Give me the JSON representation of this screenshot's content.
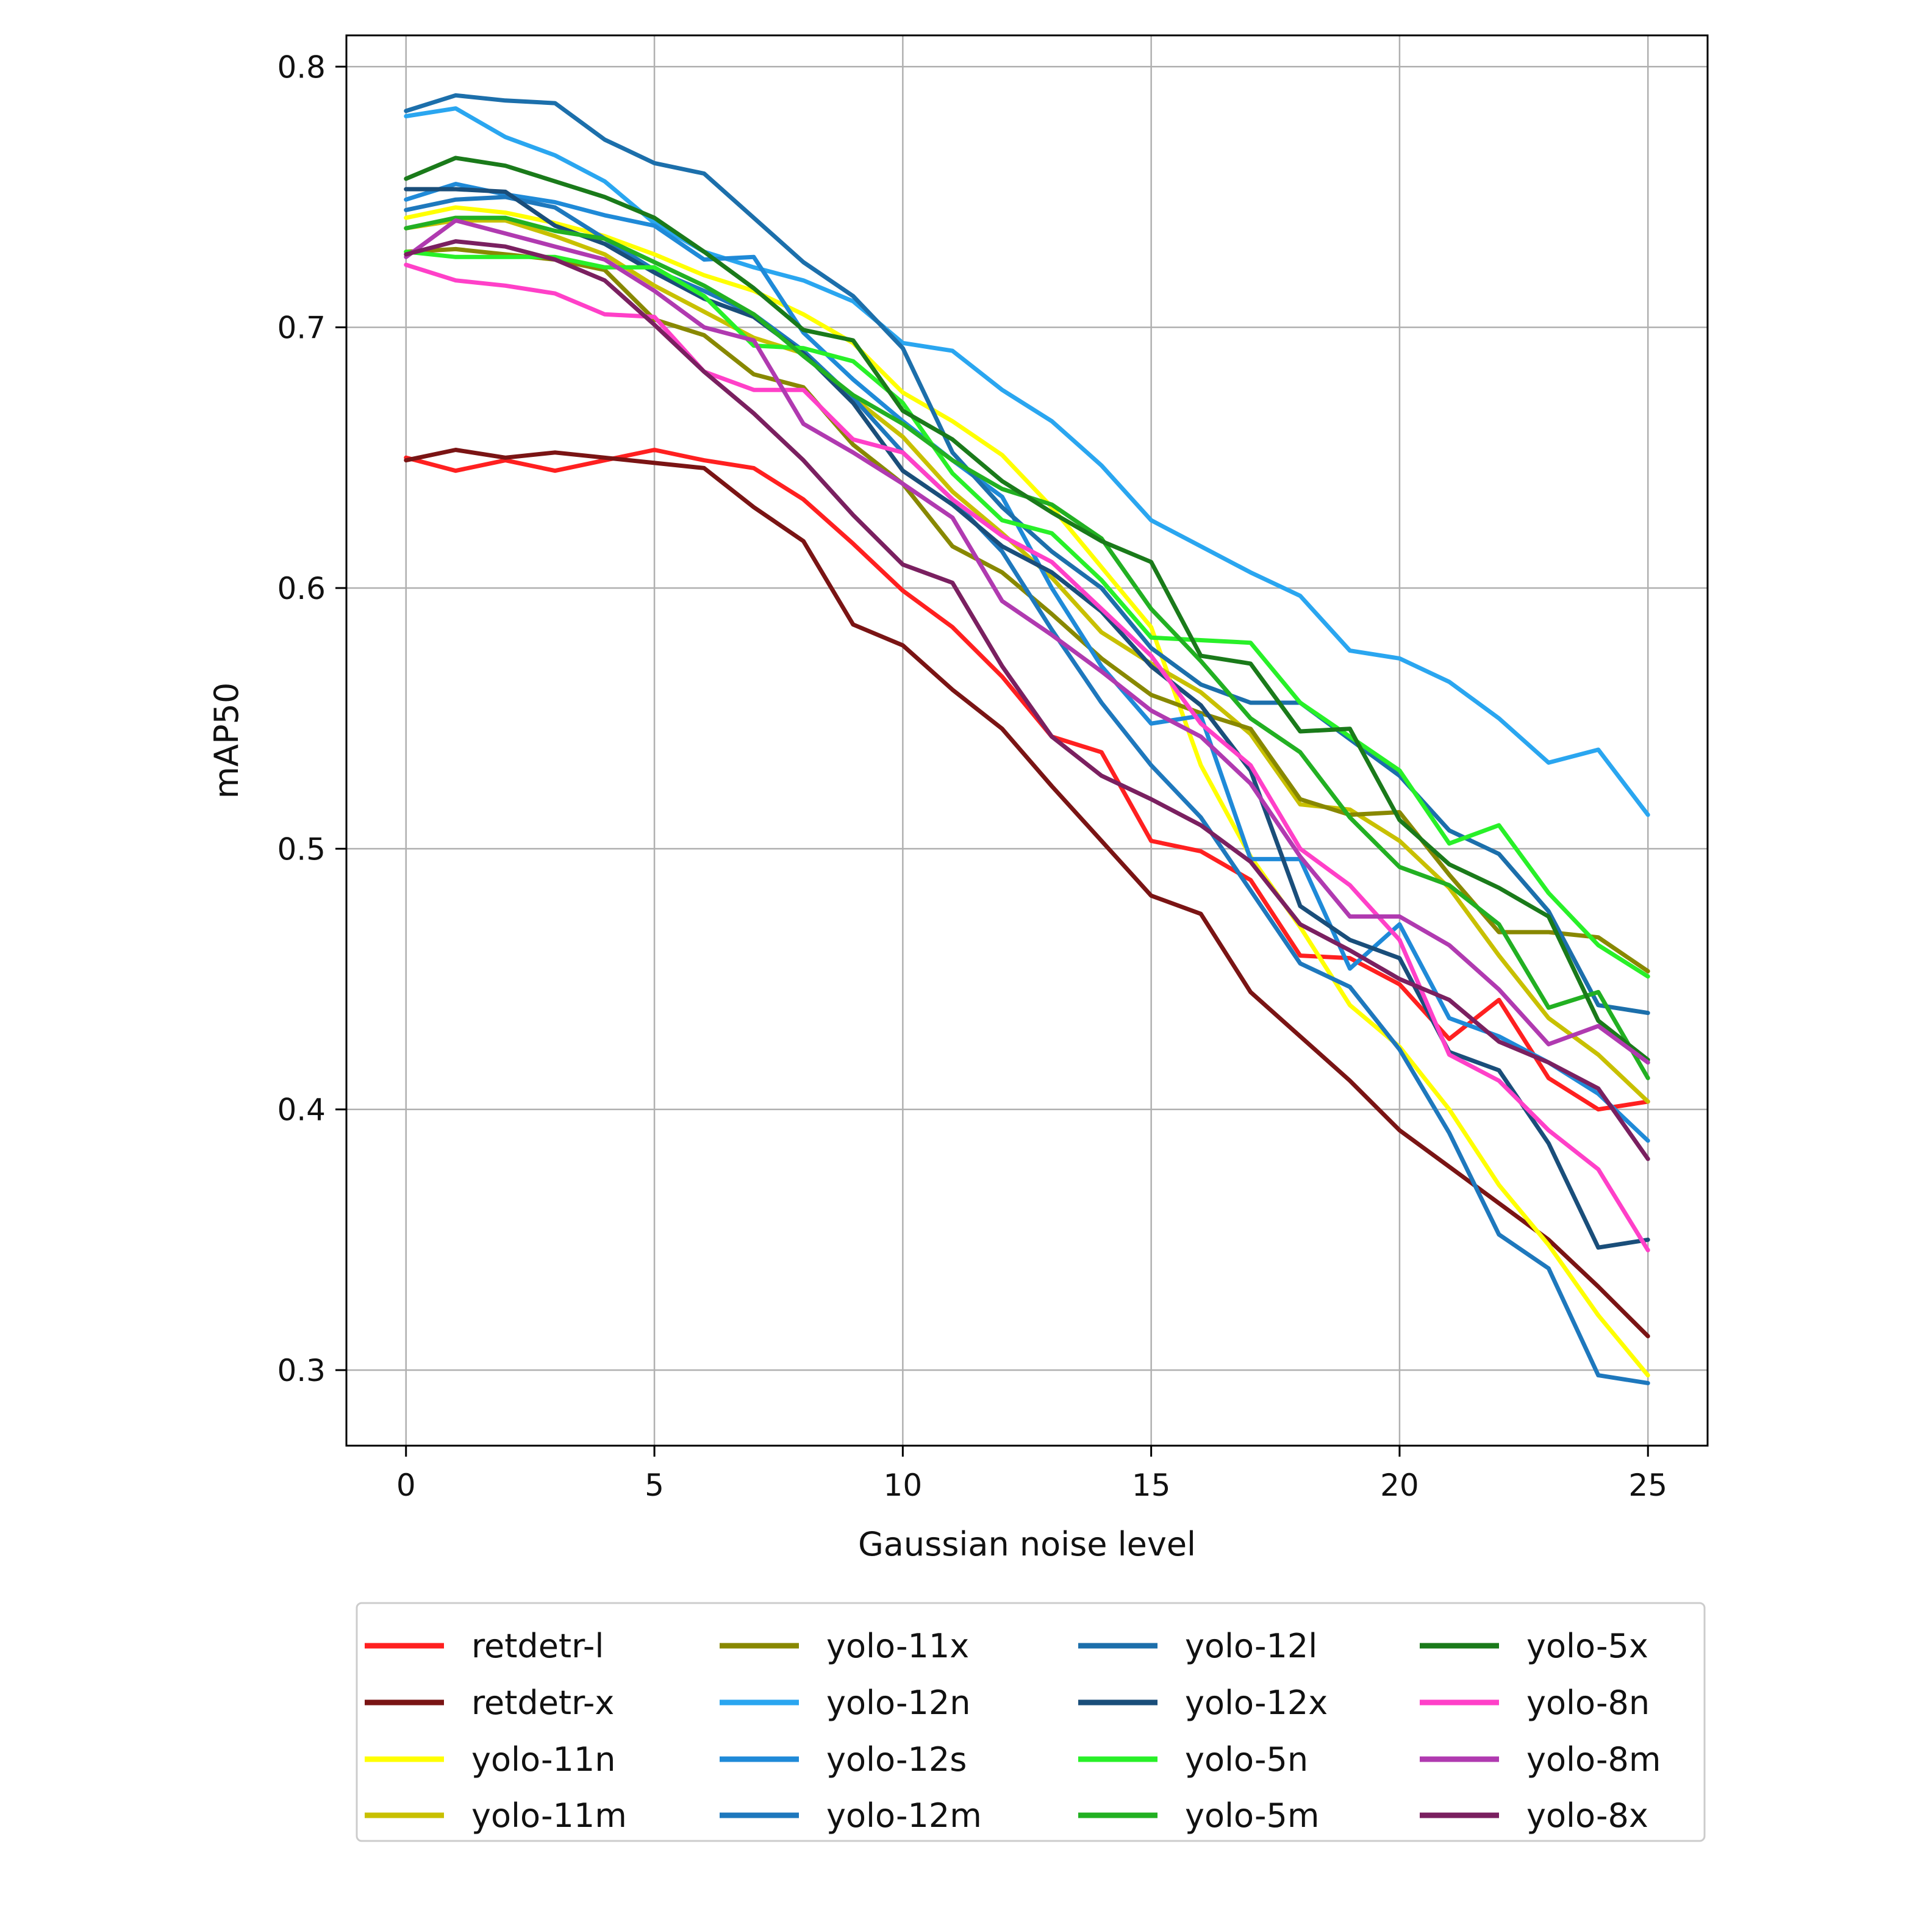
{
  "chart_data": {
    "type": "line",
    "title": "",
    "xlabel": "Gaussian noise level",
    "ylabel": "mAP50",
    "xlim": [
      -1.2,
      26.2
    ],
    "ylim": [
      0.271,
      0.812
    ],
    "xticks": [
      0,
      5,
      10,
      15,
      20,
      25
    ],
    "yticks": [
      0.3,
      0.4,
      0.5,
      0.6,
      0.7,
      0.8
    ],
    "xtick_labels": [
      "0",
      "5",
      "10",
      "15",
      "20",
      "25"
    ],
    "ytick_labels": [
      "0.3",
      "0.4",
      "0.5",
      "0.6",
      "0.7",
      "0.8"
    ],
    "grid": true,
    "legend_position": "below plot, 4 columns",
    "x": [
      0,
      1,
      2,
      3,
      4,
      5,
      6,
      7,
      8,
      9,
      10,
      11,
      12,
      13,
      14,
      15,
      16,
      17,
      18,
      19,
      20,
      21,
      22,
      23,
      24,
      25
    ],
    "series": [
      {
        "name": "retdetr-l",
        "color": "#ff2020",
        "values": [
          0.65,
          0.645,
          0.649,
          0.645,
          0.649,
          0.653,
          0.649,
          0.646,
          0.634,
          0.617,
          0.599,
          0.585,
          0.566,
          0.543,
          0.537,
          0.503,
          0.499,
          0.488,
          0.459,
          0.458,
          0.448,
          0.427,
          0.442,
          0.412,
          0.4,
          0.403
        ]
      },
      {
        "name": "retdetr-x",
        "color": "#7a1414",
        "values": [
          0.649,
          0.653,
          0.65,
          0.652,
          0.65,
          0.648,
          0.646,
          0.631,
          0.618,
          0.586,
          0.578,
          0.561,
          0.546,
          0.524,
          0.503,
          0.482,
          0.475,
          0.445,
          0.428,
          0.411,
          0.392,
          0.378,
          0.364,
          0.35,
          0.332,
          0.313
        ]
      },
      {
        "name": "yolo-11n",
        "color": "#ffff00",
        "values": [
          0.742,
          0.746,
          0.744,
          0.74,
          0.735,
          0.728,
          0.72,
          0.714,
          0.705,
          0.694,
          0.675,
          0.664,
          0.651,
          0.631,
          0.608,
          0.585,
          0.532,
          0.497,
          0.47,
          0.44,
          0.424,
          0.4,
          0.371,
          0.348,
          0.321,
          0.298
        ]
      },
      {
        "name": "yolo-11m",
        "color": "#c8c000",
        "values": [
          0.738,
          0.741,
          0.741,
          0.735,
          0.728,
          0.716,
          0.706,
          0.696,
          0.69,
          0.673,
          0.658,
          0.637,
          0.621,
          0.604,
          0.583,
          0.571,
          0.56,
          0.544,
          0.517,
          0.515,
          0.503,
          0.485,
          0.459,
          0.435,
          0.421,
          0.403
        ]
      },
      {
        "name": "yolo-11x",
        "color": "#888800",
        "values": [
          0.729,
          0.73,
          0.728,
          0.726,
          0.722,
          0.703,
          0.697,
          0.682,
          0.677,
          0.655,
          0.64,
          0.616,
          0.606,
          0.59,
          0.573,
          0.559,
          0.552,
          0.546,
          0.519,
          0.513,
          0.514,
          0.49,
          0.468,
          0.468,
          0.466,
          0.453
        ]
      },
      {
        "name": "yolo-12n",
        "color": "#2aa6f0",
        "values": [
          0.781,
          0.784,
          0.773,
          0.766,
          0.756,
          0.74,
          0.729,
          0.723,
          0.718,
          0.71,
          0.694,
          0.691,
          0.676,
          0.664,
          0.647,
          0.626,
          0.616,
          0.606,
          0.597,
          0.576,
          0.573,
          0.564,
          0.55,
          0.533,
          0.538,
          0.513
        ]
      },
      {
        "name": "yolo-12s",
        "color": "#1f8ad8",
        "values": [
          0.749,
          0.755,
          0.751,
          0.748,
          0.743,
          0.739,
          0.726,
          0.727,
          0.698,
          0.68,
          0.664,
          0.649,
          0.635,
          0.6,
          0.57,
          0.548,
          0.551,
          0.496,
          0.496,
          0.454,
          0.471,
          0.435,
          0.428,
          0.418,
          0.406,
          0.388
        ]
      },
      {
        "name": "yolo-12m",
        "color": "#1e78bd",
        "values": [
          0.745,
          0.749,
          0.75,
          0.746,
          0.734,
          0.722,
          0.714,
          0.705,
          0.691,
          0.673,
          0.652,
          0.634,
          0.614,
          0.584,
          0.556,
          0.532,
          0.512,
          0.484,
          0.456,
          0.447,
          0.423,
          0.391,
          0.352,
          0.339,
          0.298,
          0.295
        ]
      },
      {
        "name": "yolo-12l",
        "color": "#1c6fab",
        "values": [
          0.783,
          0.789,
          0.787,
          0.786,
          0.772,
          0.763,
          0.759,
          0.742,
          0.725,
          0.712,
          0.692,
          0.652,
          0.631,
          0.614,
          0.6,
          0.577,
          0.563,
          0.556,
          0.556,
          0.542,
          0.528,
          0.507,
          0.498,
          0.476,
          0.44,
          0.437
        ]
      },
      {
        "name": "yolo-12x",
        "color": "#1a4e7a",
        "values": [
          0.753,
          0.753,
          0.752,
          0.739,
          0.732,
          0.721,
          0.711,
          0.704,
          0.69,
          0.671,
          0.645,
          0.632,
          0.616,
          0.606,
          0.591,
          0.57,
          0.555,
          0.53,
          0.478,
          0.465,
          0.458,
          0.422,
          0.415,
          0.387,
          0.347,
          0.35
        ]
      },
      {
        "name": "yolo-5n",
        "color": "#28f028",
        "values": [
          0.729,
          0.727,
          0.727,
          0.727,
          0.723,
          0.723,
          0.712,
          0.693,
          0.692,
          0.687,
          0.671,
          0.644,
          0.626,
          0.621,
          0.603,
          0.581,
          0.58,
          0.579,
          0.556,
          0.543,
          0.53,
          0.502,
          0.509,
          0.483,
          0.463,
          0.451
        ]
      },
      {
        "name": "yolo-5m",
        "color": "#22b022",
        "values": [
          0.738,
          0.742,
          0.742,
          0.737,
          0.734,
          0.725,
          0.716,
          0.705,
          0.689,
          0.674,
          0.663,
          0.649,
          0.638,
          0.632,
          0.619,
          0.592,
          0.572,
          0.55,
          0.537,
          0.512,
          0.493,
          0.486,
          0.471,
          0.439,
          0.445,
          0.412
        ]
      },
      {
        "name": "yolo-5x",
        "color": "#1a7a1a",
        "values": [
          0.757,
          0.765,
          0.762,
          0.756,
          0.75,
          0.742,
          0.729,
          0.715,
          0.699,
          0.695,
          0.668,
          0.657,
          0.641,
          0.629,
          0.618,
          0.61,
          0.574,
          0.571,
          0.545,
          0.546,
          0.511,
          0.494,
          0.485,
          0.474,
          0.434,
          0.419
        ]
      },
      {
        "name": "yolo-8n",
        "color": "#ff40c8",
        "values": [
          0.724,
          0.718,
          0.716,
          0.713,
          0.705,
          0.704,
          0.683,
          0.676,
          0.676,
          0.657,
          0.652,
          0.634,
          0.62,
          0.61,
          0.592,
          0.574,
          0.548,
          0.532,
          0.5,
          0.486,
          0.465,
          0.421,
          0.411,
          0.392,
          0.377,
          0.346
        ]
      },
      {
        "name": "yolo-8m",
        "color": "#b03ab0",
        "values": [
          0.727,
          0.741,
          0.736,
          0.731,
          0.726,
          0.714,
          0.7,
          0.695,
          0.663,
          0.652,
          0.64,
          0.627,
          0.595,
          0.582,
          0.568,
          0.553,
          0.543,
          0.525,
          0.497,
          0.474,
          0.474,
          0.463,
          0.446,
          0.425,
          0.432,
          0.418
        ]
      },
      {
        "name": "yolo-8x",
        "color": "#7a2060",
        "values": [
          0.728,
          0.733,
          0.731,
          0.726,
          0.718,
          0.701,
          0.683,
          0.667,
          0.649,
          0.628,
          0.609,
          0.602,
          0.57,
          0.543,
          0.528,
          0.519,
          0.509,
          0.495,
          0.471,
          0.461,
          0.45,
          0.442,
          0.426,
          0.418,
          0.408,
          0.381
        ]
      }
    ]
  }
}
